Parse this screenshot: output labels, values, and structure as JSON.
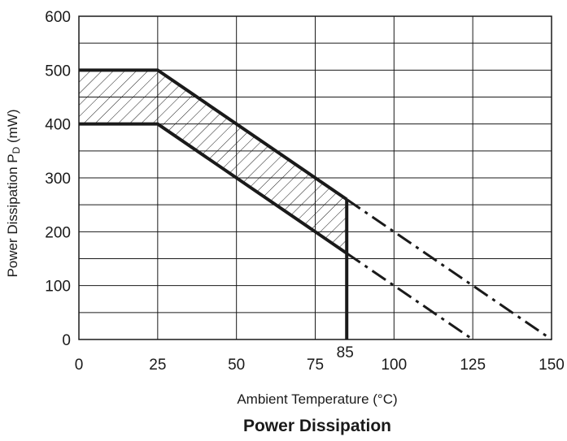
{
  "chart_data": {
    "type": "line",
    "title": "Power Dissipation",
    "xlabel": "Ambient Temperature (°C)",
    "ylabel_main": "Power Dissipation P",
    "ylabel_sub": "D",
    "ylabel_unit": " (mW)",
    "xlim": [
      0,
      150
    ],
    "ylim": [
      0,
      600
    ],
    "x_ticks": [
      0,
      25,
      50,
      75,
      100,
      125,
      150
    ],
    "x_grid": [
      0,
      25,
      50,
      75,
      100,
      125,
      150
    ],
    "y_ticks": [
      0,
      100,
      200,
      300,
      400,
      500,
      600
    ],
    "y_grid": [
      0,
      50,
      100,
      150,
      200,
      250,
      300,
      350,
      400,
      450,
      500,
      550,
      600
    ],
    "extra_x_label": "85",
    "grid": true,
    "series": [
      {
        "style": "solid",
        "points": [
          [
            0,
            500
          ],
          [
            25,
            500
          ],
          [
            85,
            260
          ]
        ]
      },
      {
        "style": "dashdot",
        "points": [
          [
            85,
            260
          ],
          [
            150,
            0
          ]
        ]
      },
      {
        "style": "solid",
        "points": [
          [
            0,
            400
          ],
          [
            25,
            400
          ],
          [
            85,
            160
          ]
        ]
      },
      {
        "style": "dashdot",
        "points": [
          [
            85,
            160
          ],
          [
            125,
            0
          ]
        ]
      },
      {
        "style": "solid",
        "points": [
          [
            85,
            260
          ],
          [
            85,
            0
          ]
        ]
      }
    ],
    "shaded_region": [
      [
        0,
        500
      ],
      [
        25,
        500
      ],
      [
        85,
        260
      ],
      [
        85,
        160
      ],
      [
        25,
        400
      ],
      [
        0,
        400
      ]
    ],
    "colors": {
      "line": "#1a1a1a",
      "grid": "#1a1a1a"
    }
  }
}
